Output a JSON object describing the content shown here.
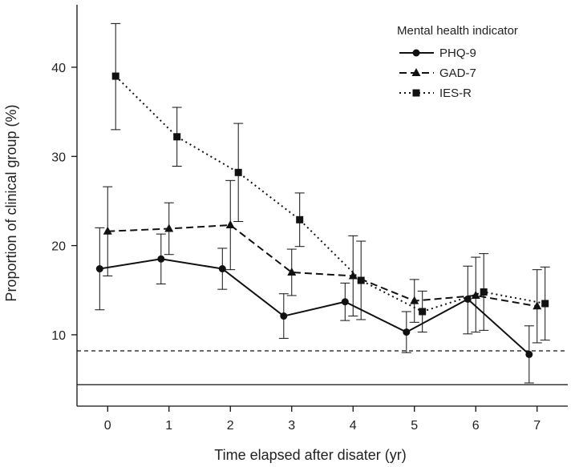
{
  "chart_data": {
    "type": "line",
    "title": "",
    "xlabel": "Time elapsed after disater (yr)",
    "ylabel": "Proportion of clinical group (%)",
    "x": [
      0,
      1,
      2,
      3,
      4,
      5,
      6,
      7
    ],
    "x_ticks": [
      "0",
      "1",
      "2",
      "3",
      "4",
      "5",
      "6",
      "7"
    ],
    "y_ticks": [
      "10",
      "20",
      "30",
      "40"
    ],
    "y_tick_values": [
      10,
      20,
      30,
      40
    ],
    "xlim": [
      -0.5,
      7.5
    ],
    "ylim": [
      2,
      47
    ],
    "legend": {
      "title": "Mental health indicator",
      "placement": "top-right"
    },
    "series": [
      {
        "name": "PHQ-9",
        "marker": "circle",
        "dash": "solid",
        "values": [
          17.4,
          18.5,
          17.4,
          12.1,
          13.7,
          10.3,
          14.0,
          7.8
        ],
        "lower": [
          12.8,
          15.7,
          15.1,
          9.6,
          11.6,
          8.0,
          10.1,
          4.6
        ],
        "upper": [
          22.0,
          21.3,
          19.7,
          14.6,
          15.8,
          12.6,
          17.7,
          11.0
        ]
      },
      {
        "name": "GAD-7",
        "marker": "triangle",
        "dash": "dashed",
        "values": [
          21.6,
          21.9,
          22.3,
          17.0,
          16.6,
          13.8,
          14.4,
          13.2
        ],
        "lower": [
          16.6,
          19.0,
          17.3,
          14.4,
          12.1,
          11.4,
          10.3,
          9.1
        ],
        "upper": [
          26.6,
          24.8,
          27.3,
          19.6,
          21.1,
          16.2,
          18.7,
          17.3
        ]
      },
      {
        "name": "IES-R",
        "marker": "square",
        "dash": "dotted",
        "values": [
          39.0,
          32.2,
          28.2,
          22.9,
          16.1,
          12.6,
          14.8,
          13.5
        ],
        "lower": [
          33.0,
          28.9,
          22.7,
          19.9,
          11.7,
          10.3,
          10.5,
          9.4
        ],
        "upper": [
          44.9,
          35.5,
          33.7,
          25.9,
          20.5,
          14.9,
          19.1,
          17.6
        ]
      }
    ],
    "reference_lines": [
      {
        "y": 8.2,
        "style": "dashed"
      },
      {
        "y": 4.4,
        "style": "solid"
      }
    ]
  }
}
